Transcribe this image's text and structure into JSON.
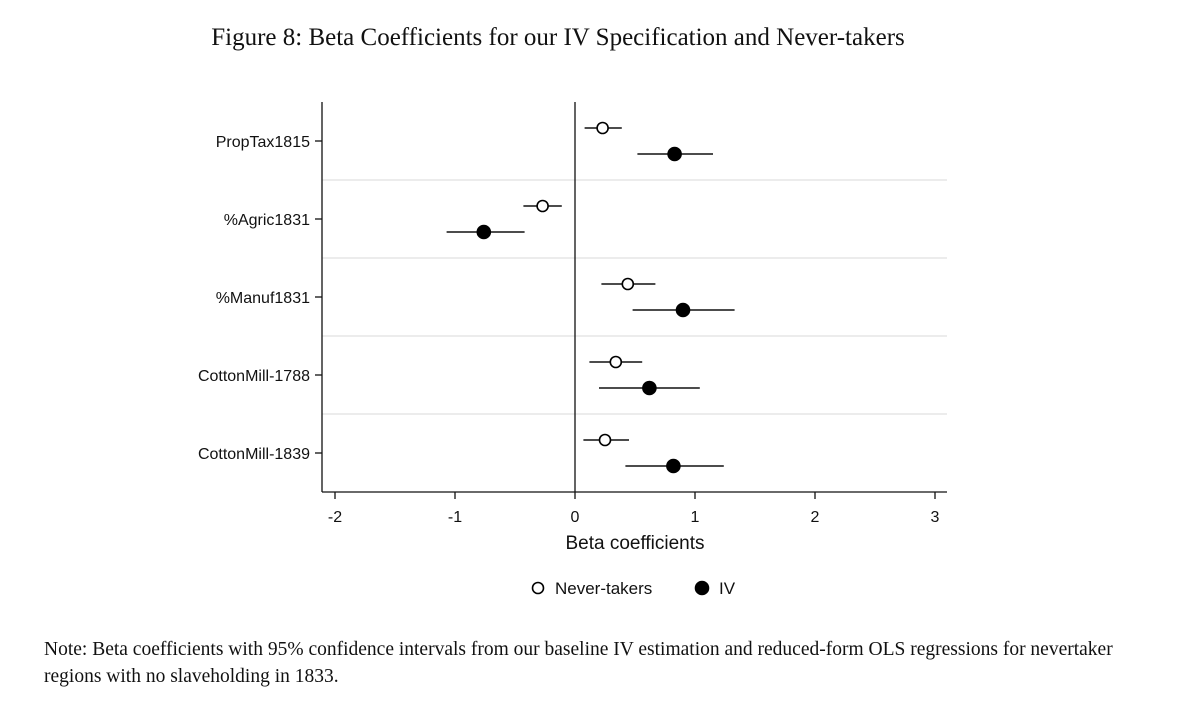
{
  "title": "Figure 8: Beta Coefficients for our IV Specification and Never-takers",
  "note": "Note: Beta coefficients with 95% confidence intervals from our baseline IV estimation and reduced-form OLS regressions for nevertaker regions with no slaveholding in 1833.",
  "chart_data": {
    "type": "scatter",
    "subtype": "coefficient-plot",
    "xlabel": "Beta coefficients",
    "ylabel": "",
    "xlim": [
      -2,
      3
    ],
    "xticks": [
      -2,
      -1,
      0,
      1,
      2,
      3
    ],
    "xtick_labels": [
      "-2",
      "-1",
      "0",
      "1",
      "2",
      "3"
    ],
    "reference_line": 0,
    "legend_position": "bottom",
    "categories": [
      "PropTax1815",
      "%Agric1831",
      "%Manuf1831",
      "CottonMill-1788",
      "CottonMill-1839"
    ],
    "series": [
      {
        "name": "Never-takers",
        "marker": "hollow-circle",
        "estimates": [
          0.23,
          -0.27,
          0.44,
          0.34,
          0.25
        ],
        "ci_low": [
          0.08,
          -0.43,
          0.22,
          0.12,
          0.07
        ],
        "ci_high": [
          0.39,
          -0.11,
          0.67,
          0.56,
          0.45
        ]
      },
      {
        "name": "IV",
        "marker": "filled-circle",
        "estimates": [
          0.83,
          -0.76,
          0.9,
          0.62,
          0.82
        ],
        "ci_low": [
          0.52,
          -1.07,
          0.48,
          0.2,
          0.42
        ],
        "ci_high": [
          1.15,
          -0.42,
          1.33,
          1.04,
          1.24
        ]
      }
    ]
  }
}
